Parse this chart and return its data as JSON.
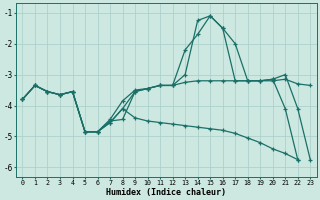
{
  "xlabel": "Humidex (Indice chaleur)",
  "bg_color": "#cce8e0",
  "grid_color": "#a8cec8",
  "line_color": "#1a7068",
  "xlim": [
    -0.5,
    23.5
  ],
  "ylim": [
    -6.3,
    -0.7
  ],
  "yticks": [
    -6,
    -5,
    -4,
    -3,
    -2,
    -1
  ],
  "xticks": [
    0,
    1,
    2,
    3,
    4,
    5,
    6,
    7,
    8,
    9,
    10,
    11,
    12,
    13,
    14,
    15,
    16,
    17,
    18,
    19,
    20,
    21,
    22,
    23
  ],
  "line1_y": [
    -3.8,
    -3.35,
    -3.55,
    -3.65,
    -3.55,
    -4.85,
    -4.85,
    -4.5,
    -4.45,
    -3.55,
    -3.45,
    -3.35,
    -3.35,
    -3.25,
    -3.2,
    -3.2,
    -3.2,
    -3.2,
    -3.2,
    -3.2,
    -3.2,
    -3.15,
    -3.3,
    -3.35
  ],
  "line2_y": [
    -3.8,
    -3.35,
    -3.55,
    -3.65,
    -3.55,
    -4.85,
    -4.85,
    -4.45,
    -3.85,
    -3.5,
    -3.45,
    -3.35,
    -3.35,
    -3.0,
    -1.25,
    -1.1,
    -1.5,
    -2.0,
    -3.2,
    -3.2,
    -3.15,
    -3.0,
    -4.1,
    -5.75
  ],
  "line3_y": [
    -3.8,
    -3.35,
    -3.55,
    -3.65,
    -3.55,
    -4.85,
    -4.85,
    -4.55,
    -4.1,
    -3.55,
    -3.45,
    -3.35,
    -3.35,
    -2.2,
    -1.7,
    -1.1,
    -1.5,
    -3.2,
    -3.2,
    -3.2,
    -3.15,
    -4.1,
    -5.75,
    null
  ],
  "line4_y": [
    -3.8,
    -3.35,
    -3.55,
    -3.65,
    -3.55,
    -4.85,
    -4.85,
    -4.55,
    -4.1,
    -4.4,
    -4.5,
    -4.55,
    -4.6,
    -4.65,
    -4.7,
    -4.75,
    -4.8,
    -4.9,
    -5.05,
    -5.2,
    -5.4,
    -5.55,
    -5.75,
    null
  ]
}
